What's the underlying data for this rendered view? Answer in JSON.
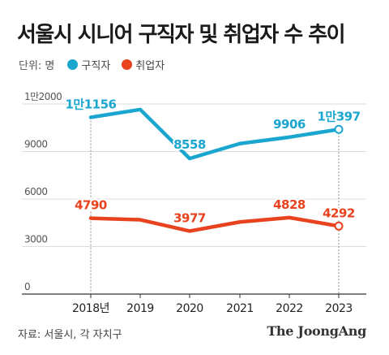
{
  "title": "서울시 시니어 구직자 및 취업자 수 추이",
  "legend": {
    "unit": "단위: 명",
    "items": [
      {
        "label": "구직자",
        "color": "#1ba6cf"
      },
      {
        "label": "취업자",
        "color": "#e8421e"
      }
    ]
  },
  "source": "자료: 서울시, 각 자치구",
  "brand": "The JoongAng",
  "chart_data": {
    "type": "line",
    "title": "서울시 시니어 구직자 및 취업자 수 추이",
    "x": [
      "2018년",
      "2019",
      "2020",
      "2021",
      "2022",
      "2023"
    ],
    "y_ticks": [
      {
        "value": 0,
        "label": "0"
      },
      {
        "value": 3000,
        "label": "3000"
      },
      {
        "value": 6000,
        "label": "6000"
      },
      {
        "value": 9000,
        "label": "9000"
      },
      {
        "value": 12000,
        "label": "1만2000"
      }
    ],
    "ylim": [
      0,
      12000
    ],
    "grid": true,
    "series": [
      {
        "name": "구직자",
        "color": "#1ba6cf",
        "values": [
          11156,
          11650,
          8558,
          9500,
          9906,
          10397
        ],
        "labels": [
          "1만1156",
          "",
          "8558",
          "",
          "9906",
          "1만397"
        ],
        "markers": [
          false,
          false,
          false,
          false,
          false,
          true
        ]
      },
      {
        "name": "취업자",
        "color": "#e8421e",
        "values": [
          4790,
          4690,
          3977,
          4550,
          4828,
          4292
        ],
        "labels": [
          "4790",
          "",
          "3977",
          "",
          "4828",
          "4292"
        ],
        "markers": [
          false,
          false,
          false,
          false,
          false,
          true
        ]
      }
    ]
  }
}
